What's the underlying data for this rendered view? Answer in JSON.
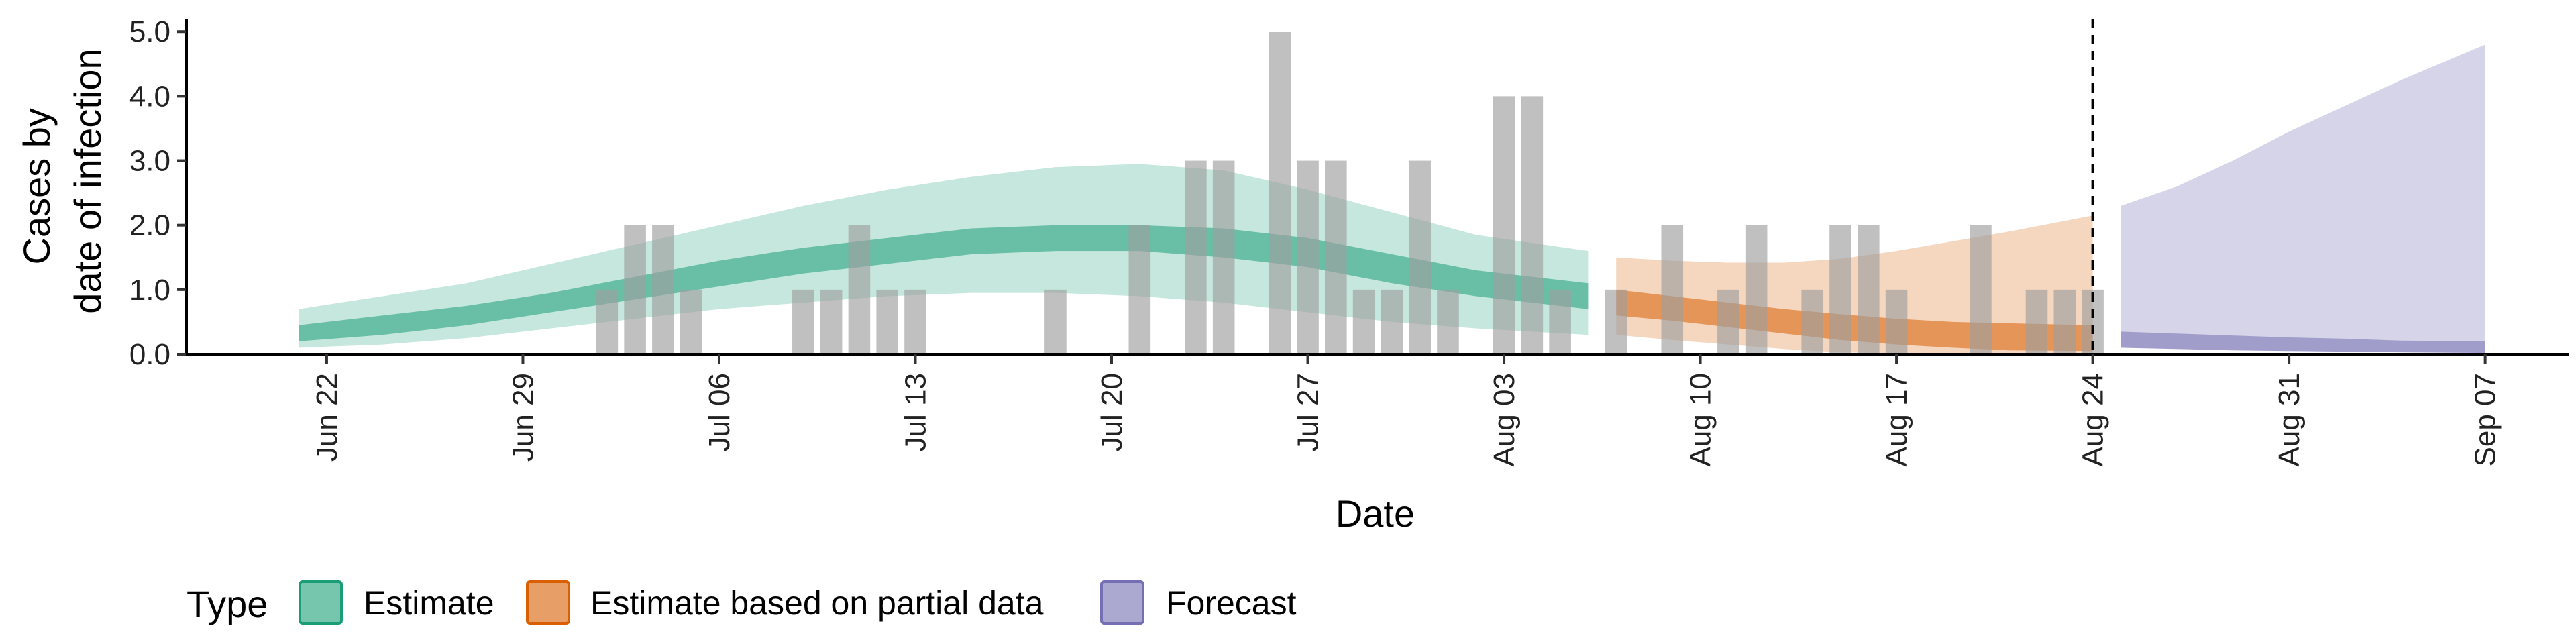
{
  "chart_data": {
    "type": "area",
    "title": "",
    "xlabel": "Date",
    "ylabel_lines": [
      "Cases by",
      "date of infection"
    ],
    "x_ticks": [
      "Jun 22",
      "Jun 29",
      "Jul 06",
      "Jul 13",
      "Jul 20",
      "Jul 27",
      "Aug 03",
      "Aug 10",
      "Aug 17",
      "Aug 24",
      "Aug 31",
      "Sep 07"
    ],
    "x_tick_dates": [
      "2020-06-22",
      "2020-06-29",
      "2020-07-06",
      "2020-07-13",
      "2020-07-20",
      "2020-07-27",
      "2020-08-03",
      "2020-08-10",
      "2020-08-17",
      "2020-08-24",
      "2020-08-31",
      "2020-09-07"
    ],
    "xlim": [
      "2020-06-17",
      "2020-09-10"
    ],
    "ylim": [
      0,
      5.2
    ],
    "y_ticks": [
      "0.0",
      "1.0",
      "2.0",
      "3.0",
      "4.0",
      "5.0"
    ],
    "y_tick_values": [
      0,
      1,
      2,
      3,
      4,
      5
    ],
    "vline_date": "2020-08-24",
    "legend": {
      "title": "Type",
      "position": "bottom",
      "entries": [
        {
          "label": "Estimate",
          "color": "#1b9e77"
        },
        {
          "label": "Estimate based on partial data",
          "color": "#d95f02"
        },
        {
          "label": "Forecast",
          "color": "#7570b3"
        }
      ]
    },
    "observed_cases": {
      "color": "#9e9e9e",
      "dates": [
        "2020-07-02",
        "2020-07-03",
        "2020-07-04",
        "2020-07-05",
        "2020-07-09",
        "2020-07-10",
        "2020-07-11",
        "2020-07-12",
        "2020-07-13",
        "2020-07-18",
        "2020-07-21",
        "2020-07-23",
        "2020-07-24",
        "2020-07-26",
        "2020-07-27",
        "2020-07-28",
        "2020-07-29",
        "2020-07-30",
        "2020-07-31",
        "2020-08-01",
        "2020-08-03",
        "2020-08-04",
        "2020-08-05",
        "2020-08-07",
        "2020-08-09",
        "2020-08-11",
        "2020-08-12",
        "2020-08-14",
        "2020-08-15",
        "2020-08-16",
        "2020-08-17",
        "2020-08-20",
        "2020-08-22",
        "2020-08-23",
        "2020-08-24"
      ],
      "values": [
        1,
        2,
        2,
        1,
        1,
        1,
        2,
        1,
        1,
        1,
        2,
        3,
        3,
        5,
        3,
        3,
        1,
        1,
        3,
        1,
        4,
        4,
        1,
        1,
        2,
        1,
        2,
        1,
        2,
        2,
        1,
        2,
        1,
        1,
        1
      ]
    },
    "series": [
      {
        "name": "Estimate",
        "color": "#1b9e77",
        "dates": [
          "2020-06-21",
          "2020-06-24",
          "2020-06-27",
          "2020-06-30",
          "2020-07-03",
          "2020-07-06",
          "2020-07-09",
          "2020-07-12",
          "2020-07-15",
          "2020-07-18",
          "2020-07-21",
          "2020-07-24",
          "2020-07-27",
          "2020-07-30",
          "2020-08-02",
          "2020-08-06"
        ],
        "outer_lower": [
          0.1,
          0.15,
          0.25,
          0.4,
          0.55,
          0.7,
          0.8,
          0.9,
          0.95,
          0.95,
          0.9,
          0.8,
          0.65,
          0.5,
          0.4,
          0.3
        ],
        "inner_lower": [
          0.2,
          0.3,
          0.45,
          0.65,
          0.85,
          1.05,
          1.25,
          1.4,
          1.55,
          1.6,
          1.6,
          1.5,
          1.35,
          1.1,
          0.9,
          0.7
        ],
        "inner_upper": [
          0.45,
          0.6,
          0.75,
          0.95,
          1.2,
          1.45,
          1.65,
          1.8,
          1.95,
          2.0,
          2.0,
          1.95,
          1.8,
          1.55,
          1.3,
          1.1
        ],
        "outer_upper": [
          0.7,
          0.9,
          1.1,
          1.4,
          1.7,
          2.0,
          2.3,
          2.55,
          2.75,
          2.9,
          2.95,
          2.85,
          2.55,
          2.2,
          1.85,
          1.6
        ]
      },
      {
        "name": "Estimate based on partial data",
        "color": "#d95f02",
        "dates": [
          "2020-08-07",
          "2020-08-09",
          "2020-08-11",
          "2020-08-13",
          "2020-08-15",
          "2020-08-17",
          "2020-08-19",
          "2020-08-21",
          "2020-08-24"
        ],
        "outer_lower": [
          0.3,
          0.22,
          0.15,
          0.08,
          0.03,
          0.01,
          0,
          0,
          0
        ],
        "inner_lower": [
          0.6,
          0.52,
          0.42,
          0.32,
          0.22,
          0.15,
          0.1,
          0.06,
          0.05
        ],
        "inner_upper": [
          1.0,
          0.9,
          0.8,
          0.7,
          0.62,
          0.55,
          0.5,
          0.48,
          0.45
        ],
        "outer_upper": [
          1.5,
          1.45,
          1.42,
          1.42,
          1.48,
          1.6,
          1.75,
          1.9,
          2.15
        ]
      },
      {
        "name": "Forecast",
        "color": "#7570b3",
        "dates": [
          "2020-08-25",
          "2020-08-27",
          "2020-08-29",
          "2020-08-31",
          "2020-09-02",
          "2020-09-04",
          "2020-09-07"
        ],
        "lower": [
          0.1,
          0.08,
          0.06,
          0.05,
          0.04,
          0.03,
          0.02
        ],
        "inner_upper": [
          0.35,
          0.32,
          0.29,
          0.26,
          0.24,
          0.21,
          0.2
        ],
        "upper": [
          2.3,
          2.6,
          3.0,
          3.45,
          3.85,
          4.25,
          4.8
        ]
      }
    ]
  }
}
